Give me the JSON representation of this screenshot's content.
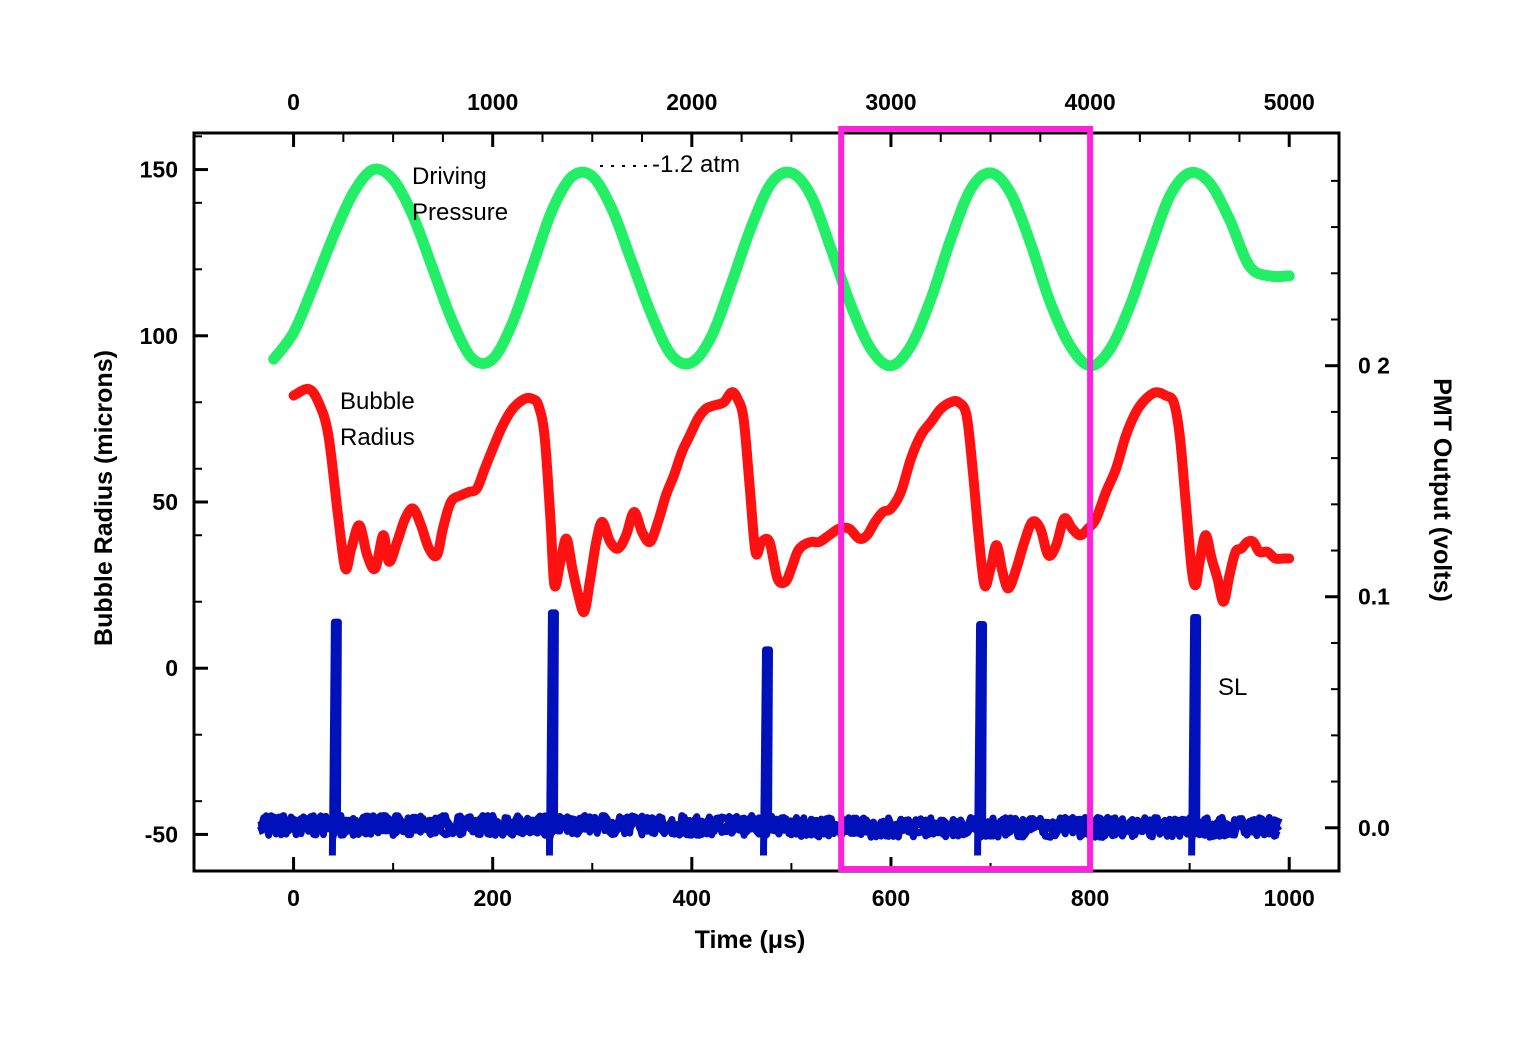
{
  "chart_data": {
    "type": "line",
    "xlabel": "Time (μs)",
    "ylabel_left": "Bubble Radius (microns)",
    "ylabel_right": "PMT Output (volts)",
    "x_bottom": {
      "range": [
        -100,
        1050
      ],
      "ticks": [
        "0",
        "200",
        "400",
        "600",
        "800",
        "1000"
      ],
      "tick_values": [
        0,
        200,
        400,
        600,
        800,
        1000
      ]
    },
    "x_top": {
      "range": [
        -500,
        5250
      ],
      "ticks": [
        "0",
        "1000",
        "2000",
        "3000",
        "4000",
        "5000"
      ],
      "tick_values": [
        0,
        1000,
        2000,
        3000,
        4000,
        5000
      ]
    },
    "y_left": {
      "range": [
        -61,
        161
      ],
      "ticks": [
        "-50",
        "0",
        "50",
        "100",
        "150"
      ],
      "tick_values": [
        -50,
        0,
        50,
        100,
        150
      ]
    },
    "y_right": {
      "ticks": [
        "0.0",
        "0.1",
        "0 2"
      ],
      "tick_values": [
        0.0,
        0.1,
        0.2
      ],
      "zero_at_left": -48,
      "per_unit_left": 695
    },
    "annotations": {
      "driving_pressure_line1": "Driving",
      "driving_pressure_line2": "Pressure",
      "pressure_amplitude": "-1.2 atm",
      "bubble_radius_line1": "Bubble",
      "bubble_radius_line2": "Radius",
      "sl": "SL"
    },
    "highlight_box": {
      "x_range": [
        550,
        800
      ],
      "color": "#ff22dd"
    },
    "series": [
      {
        "name": "Driving Pressure",
        "color": "#22ee66",
        "x": [
          -20,
          0,
          20,
          40,
          60,
          80,
          100,
          120,
          140,
          160,
          180,
          200,
          220,
          240,
          260,
          280,
          300,
          320,
          340,
          360,
          380,
          400,
          420,
          440,
          460,
          480,
          500,
          520,
          540,
          560,
          580,
          600,
          620,
          640,
          660,
          680,
          700,
          720,
          740,
          760,
          780,
          800,
          820,
          840,
          860,
          880,
          900,
          920,
          940,
          960,
          980,
          1000
        ],
        "values": [
          93,
          101,
          115,
          130,
          143,
          150,
          147,
          136,
          120,
          104,
          93,
          93,
          104,
          121,
          138,
          148,
          148,
          138,
          122,
          106,
          94,
          92,
          100,
          116,
          133,
          146,
          149,
          142,
          126,
          109,
          96,
          91,
          97,
          111,
          129,
          144,
          149,
          143,
          128,
          110,
          97,
          91,
          96,
          109,
          126,
          142,
          149,
          146,
          135,
          121,
          118,
          118
        ]
      },
      {
        "name": "Bubble Radius",
        "color": "#ff1111",
        "x": [
          0,
          15,
          25,
          35,
          45,
          52,
          58,
          66,
          74,
          82,
          90,
          96,
          104,
          112,
          120,
          128,
          136,
          144,
          150,
          158,
          168,
          176,
          184,
          192,
          200,
          210,
          220,
          232,
          240,
          246,
          252,
          258,
          262,
          268,
          274,
          280,
          286,
          292,
          298,
          304,
          310,
          318,
          326,
          334,
          342,
          350,
          358,
          366,
          374,
          382,
          390,
          398,
          406,
          414,
          422,
          432,
          440,
          446,
          452,
          458,
          464,
          470,
          478,
          486,
          494,
          500,
          506,
          512,
          520,
          528,
          538,
          548,
          558,
          568,
          576,
          584,
          592,
          600,
          610,
          620,
          630,
          640,
          650,
          660,
          668,
          676,
          682,
          688,
          694,
          700,
          706,
          712,
          718,
          726,
          734,
          742,
          750,
          758,
          766,
          774,
          782,
          790,
          798,
          806,
          816,
          826,
          836,
          846,
          856,
          866,
          876,
          884,
          890,
          896,
          902,
          906,
          910,
          916,
          922,
          928,
          934,
          940,
          946,
          952,
          958,
          964,
          970,
          978,
          986,
          994,
          1000
        ],
        "values": [
          82,
          84,
          80,
          70,
          45,
          30,
          36,
          43,
          34,
          30,
          40,
          32,
          38,
          45,
          48,
          43,
          36,
          34,
          42,
          50,
          52,
          53,
          54,
          60,
          66,
          73,
          78,
          81,
          81,
          79,
          70,
          45,
          25,
          32,
          39,
          30,
          22,
          17,
          27,
          38,
          44,
          38,
          36,
          40,
          47,
          41,
          38,
          44,
          52,
          58,
          65,
          70,
          75,
          78,
          79,
          80,
          83,
          81,
          75,
          55,
          35,
          38,
          38,
          27,
          26,
          30,
          35,
          37,
          38,
          38,
          40,
          42,
          42,
          39,
          40,
          44,
          47,
          48,
          53,
          63,
          70,
          74,
          78,
          80,
          80,
          76,
          60,
          40,
          25,
          30,
          37,
          29,
          24,
          30,
          38,
          44,
          42,
          34,
          37,
          45,
          42,
          40,
          42,
          45,
          53,
          60,
          70,
          77,
          81,
          83,
          82,
          80,
          70,
          50,
          30,
          25,
          32,
          40,
          33,
          27,
          20,
          28,
          35,
          36,
          38,
          38,
          35,
          35,
          33,
          33,
          33
        ]
      },
      {
        "name": "SL",
        "color": "#0010bb",
        "flash_times": [
          42,
          260,
          475,
          690,
          905
        ],
        "flash_peaks_volts": [
          0.089,
          0.093,
          0.077,
          0.088,
          0.091
        ],
        "baseline_volts": 0.001
      }
    ]
  }
}
